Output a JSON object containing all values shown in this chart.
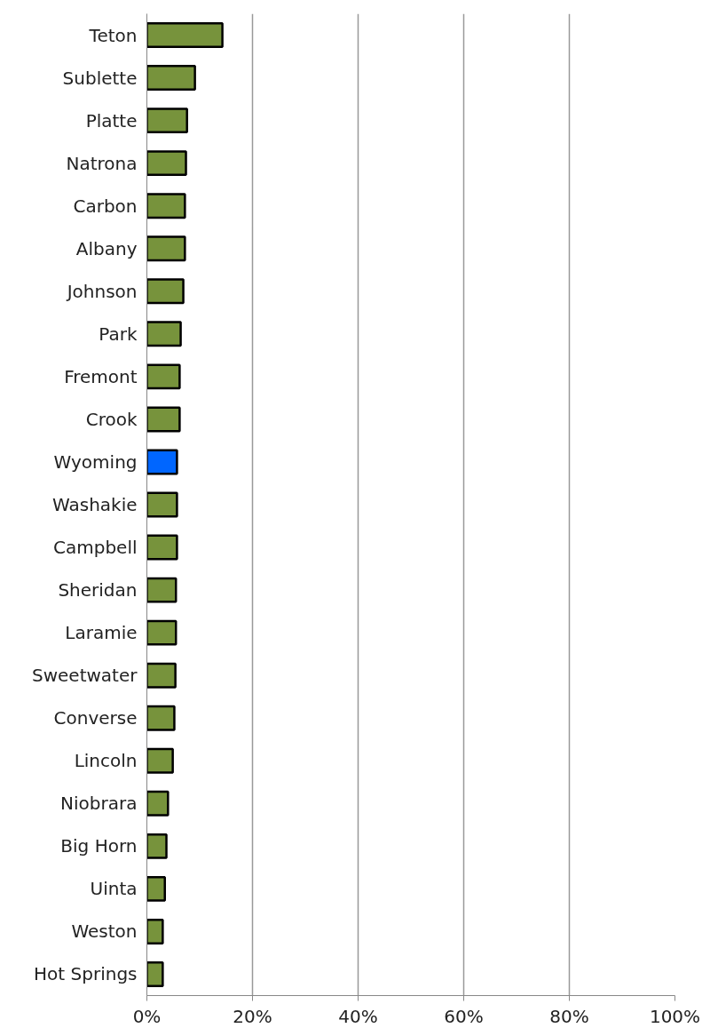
{
  "chart_data": {
    "type": "bar",
    "orientation": "horizontal",
    "categories": [
      "Teton",
      "Sublette",
      "Platte",
      "Natrona",
      "Carbon",
      "Albany",
      "Johnson",
      "Park",
      "Fremont",
      "Crook",
      "Wyoming",
      "Washakie",
      "Campbell",
      "Sheridan",
      "Laramie",
      "Sweetwater",
      "Converse",
      "Lincoln",
      "Niobrara",
      "Big Horn",
      "Uinta",
      "Weston",
      "Hot Springs"
    ],
    "values": [
      14.3,
      9.1,
      7.6,
      7.4,
      7.2,
      7.2,
      6.9,
      6.4,
      6.2,
      6.2,
      5.7,
      5.7,
      5.7,
      5.5,
      5.5,
      5.4,
      5.2,
      4.9,
      4.0,
      3.7,
      3.4,
      3.0,
      3.0
    ],
    "colors": [
      "#77933c",
      "#77933c",
      "#77933c",
      "#77933c",
      "#77933c",
      "#77933c",
      "#77933c",
      "#77933c",
      "#77933c",
      "#77933c",
      "#0066ff",
      "#77933c",
      "#77933c",
      "#77933c",
      "#77933c",
      "#77933c",
      "#77933c",
      "#77933c",
      "#77933c",
      "#77933c",
      "#77933c",
      "#77933c",
      "#77933c"
    ],
    "xlim": [
      0,
      100
    ],
    "xticks": [
      {
        "value": 0,
        "label": "0%"
      },
      {
        "value": 20,
        "label": "20%"
      },
      {
        "value": 40,
        "label": "40%"
      },
      {
        "value": 60,
        "label": "60%"
      },
      {
        "value": 80,
        "label": "80%"
      },
      {
        "value": 100,
        "label": "100%"
      }
    ],
    "grid": "x"
  }
}
